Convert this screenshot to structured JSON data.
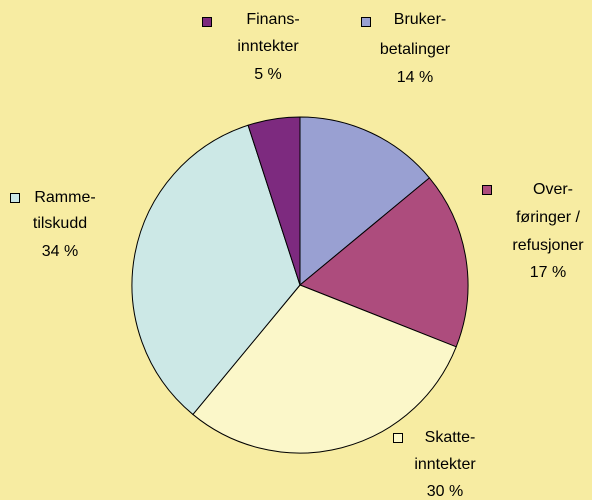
{
  "chart_data": {
    "type": "pie",
    "categories": [
      [
        "Bruker-",
        "betalinger"
      ],
      [
        "Over-",
        "føringer /",
        "refusjoner"
      ],
      [
        "Skatte-",
        "inntekter"
      ],
      [
        "Ramme-",
        "tilskudd"
      ],
      [
        "Finans-",
        "inntekter"
      ]
    ],
    "values": [
      14,
      17,
      30,
      34,
      5
    ],
    "value_labels": [
      "14 %",
      "17 %",
      "30 %",
      "34 %",
      "5 %"
    ],
    "colors": [
      "#99a0d2",
      "#ad4c7d",
      "#fbf7c9",
      "#cce8e6",
      "#7d2a7f"
    ]
  }
}
